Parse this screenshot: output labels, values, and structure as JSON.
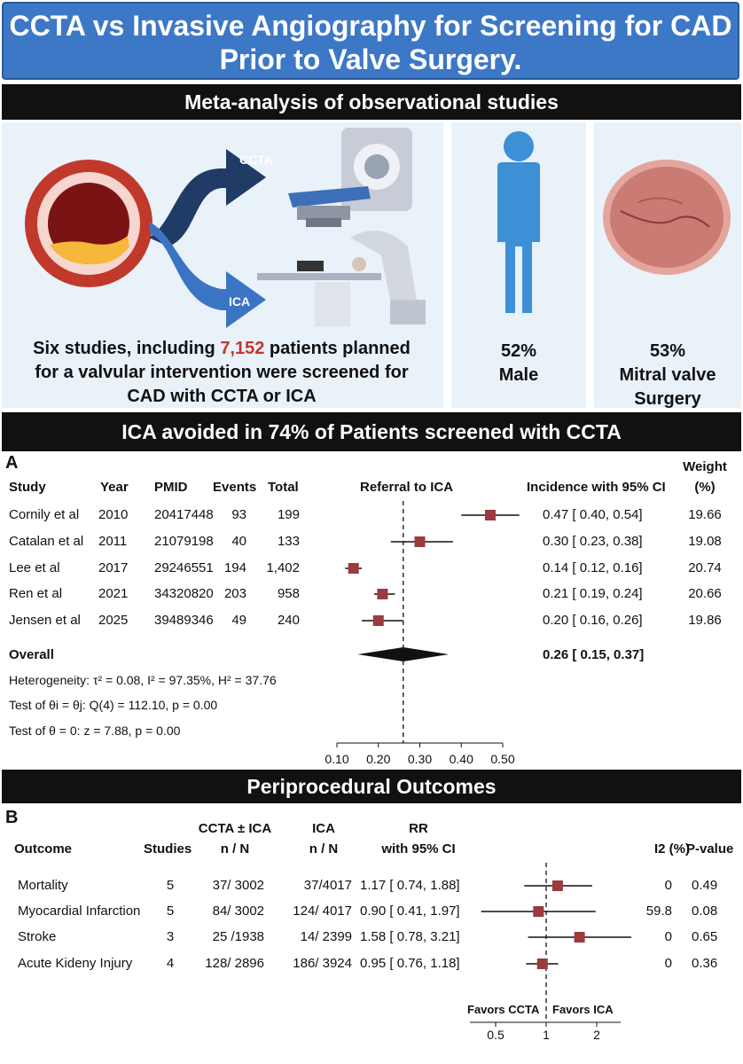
{
  "title": "CCTA vs Invasive Angiography for Screening for CAD Prior to Valve Surgery.",
  "banner1": "Meta-analysis of observational studies",
  "arrows": {
    "top": "CCTA",
    "bottom": "ICA"
  },
  "summary": {
    "pre": "Six studies, including ",
    "highlight": "7,152",
    "post": " patients planned for a valvular intervention were screened for CAD with CCTA or ICA"
  },
  "stat_male": {
    "value": "52%",
    "label": "Male"
  },
  "stat_mitral": {
    "value": "53%",
    "label1": "Mitral valve",
    "label2": "Surgery"
  },
  "banner2": "ICA avoided in 74% of Patients screened with CCTA",
  "chart_data": [
    {
      "type": "forest",
      "panel": "A",
      "headers": {
        "study": "Study",
        "year": "Year",
        "pmid": "PMID",
        "events": "Events",
        "total": "Total",
        "plot": "Referral to ICA",
        "ci": "Incidence with 95% CI",
        "weight1": "Weight",
        "weight2": "(%)"
      },
      "rows": [
        {
          "study": "Cornily et al",
          "year": "2010",
          "pmid": "20417448",
          "events": "93",
          "total": "199",
          "est": 0.47,
          "lo": 0.4,
          "hi": 0.54,
          "ci_text": "0.47 [ 0.40,  0.54]",
          "weight": "19.66"
        },
        {
          "study": "Catalan et al",
          "year": "2011",
          "pmid": "21079198",
          "events": "40",
          "total": "133",
          "est": 0.3,
          "lo": 0.23,
          "hi": 0.38,
          "ci_text": "0.30 [ 0.23,  0.38]",
          "weight": "19.08"
        },
        {
          "study": "Lee et al",
          "year": "2017",
          "pmid": "29246551",
          "events": "194",
          "total": "1,402",
          "est": 0.14,
          "lo": 0.12,
          "hi": 0.16,
          "ci_text": "0.14 [ 0.12,  0.16]",
          "weight": "20.74"
        },
        {
          "study": "Ren et al",
          "year": "2021",
          "pmid": "34320820",
          "events": "203",
          "total": "958",
          "est": 0.21,
          "lo": 0.19,
          "hi": 0.24,
          "ci_text": "0.21 [ 0.19,  0.24]",
          "weight": "20.66"
        },
        {
          "study": "Jensen et al",
          "year": "2025",
          "pmid": "39489346",
          "events": "49",
          "total": "240",
          "est": 0.2,
          "lo": 0.16,
          "hi": 0.26,
          "ci_text": "0.20 [ 0.16,  0.26]",
          "weight": "19.86"
        }
      ],
      "overall": {
        "label": "Overall",
        "est": 0.26,
        "lo": 0.15,
        "hi": 0.37,
        "ci_text": "0.26 [ 0.15,  0.37]"
      },
      "stats": [
        "Heterogeneity: τ² = 0.08, I² = 97.35%, H² = 37.76",
        "Test of θi = θj: Q(4) = 112.10, p = 0.00",
        "Test of θ = 0: z = 7.88, p = 0.00"
      ],
      "xlim": [
        0.1,
        0.5
      ],
      "ticks": [
        "0.10",
        "0.20",
        "0.30",
        "0.40",
        "0.50"
      ],
      "ref_line": 0.26
    },
    {
      "type": "forest",
      "panel": "B",
      "title": "Periprocedural Outcomes",
      "headers": {
        "outcome": "Outcome",
        "studies": "Studies",
        "ccta1": "CCTA ± ICA",
        "ccta2": "n / N",
        "ica1": "ICA",
        "ica2": "n / N",
        "rr1": "RR",
        "rr2": "with 95% CI",
        "i2": "I2 (%)",
        "p": "P-value"
      },
      "rows": [
        {
          "outcome": "Mortality",
          "studies": "5",
          "ccta": "37/ 3002",
          "ica": "37/4017",
          "est": 1.17,
          "lo": 0.74,
          "hi": 1.88,
          "rr_text": "1.17 [ 0.74, 1.88]",
          "i2": "0",
          "p": "0.49"
        },
        {
          "outcome": "Myocardial Infarction",
          "studies": "5",
          "ccta": "84/ 3002",
          "ica": "124/ 4017",
          "est": 0.9,
          "lo": 0.41,
          "hi": 1.97,
          "rr_text": "0.90 [ 0.41, 1.97]",
          "i2": "59.8",
          "p": "0.08"
        },
        {
          "outcome": "Stroke",
          "studies": "3",
          "ccta": "25 /1938",
          "ica": "14/ 2399",
          "est": 1.58,
          "lo": 0.78,
          "hi": 3.21,
          "rr_text": "1.58 [ 0.78, 3.21]",
          "i2": "0",
          "p": "0.65"
        },
        {
          "outcome": "Acute Kideny Injury",
          "studies": "4",
          "ccta": "128/ 2896",
          "ica": "186/ 3924",
          "est": 0.95,
          "lo": 0.76,
          "hi": 1.18,
          "rr_text": "0.95 [ 0.76, 1.18]",
          "i2": "0",
          "p": "0.36"
        }
      ],
      "favors_left": "Favors CCTA",
      "favors_right": "Favors ICA",
      "scale": "log",
      "ticks": [
        {
          "v": 0.5,
          "label": "0.5"
        },
        {
          "v": 1,
          "label": "1"
        },
        {
          "v": 2,
          "label": "2"
        }
      ],
      "ref_line": 1
    }
  ],
  "colors": {
    "title_bg": "#3d78c7",
    "panel_bg": "#e9f1f9",
    "marker": "#9b3a3f",
    "highlight": "#c0392b",
    "person": "#3d8fd6",
    "arrow": "#1f3b66"
  }
}
